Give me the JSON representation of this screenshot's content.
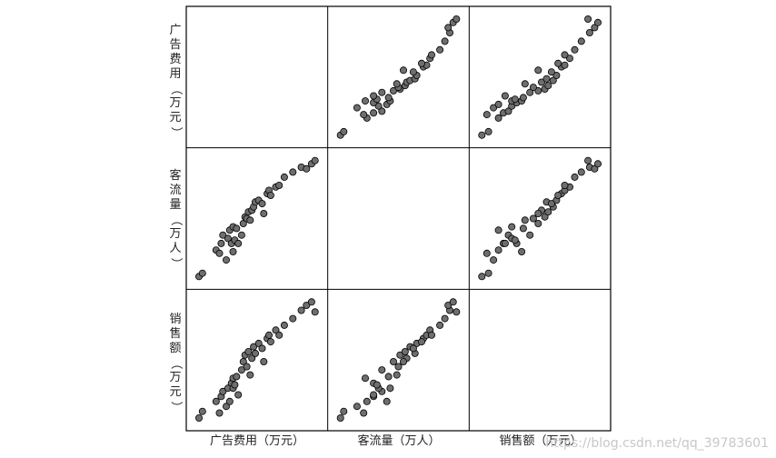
{
  "chart_data": {
    "type": "scatter",
    "variables": [
      "广告费用（万元）",
      "客流量（万人）",
      "销售额（万元）"
    ],
    "points": [
      {
        "ad": 1.0,
        "traffic": 1.0,
        "sales": 1.0
      },
      {
        "ad": 1.2,
        "traffic": 1.2,
        "sales": 1.4
      },
      {
        "ad": 2.0,
        "traffic": 2.6,
        "sales": 2.0
      },
      {
        "ad": 2.2,
        "traffic": 2.4,
        "sales": 1.3
      },
      {
        "ad": 2.3,
        "traffic": 3.0,
        "sales": 2.3
      },
      {
        "ad": 2.4,
        "traffic": 3.5,
        "sales": 2.6
      },
      {
        "ad": 2.6,
        "traffic": 2.0,
        "sales": 1.7
      },
      {
        "ad": 2.7,
        "traffic": 3.3,
        "sales": 2.8
      },
      {
        "ad": 2.8,
        "traffic": 3.8,
        "sales": 2.0
      },
      {
        "ad": 2.9,
        "traffic": 3.0,
        "sales": 3.1
      },
      {
        "ad": 3.0,
        "traffic": 4.0,
        "sales": 2.8
      },
      {
        "ad": 3.0,
        "traffic": 2.5,
        "sales": 3.4
      },
      {
        "ad": 3.1,
        "traffic": 3.2,
        "sales": 3.0
      },
      {
        "ad": 3.2,
        "traffic": 3.9,
        "sales": 3.5
      },
      {
        "ad": 3.3,
        "traffic": 3.0,
        "sales": 2.4
      },
      {
        "ad": 3.5,
        "traffic": 3.5,
        "sales": 3.9
      },
      {
        "ad": 3.6,
        "traffic": 4.2,
        "sales": 4.4
      },
      {
        "ad": 3.7,
        "traffic": 4.6,
        "sales": 4.8
      },
      {
        "ad": 3.8,
        "traffic": 4.5,
        "sales": 4.1
      },
      {
        "ad": 3.9,
        "traffic": 4.9,
        "sales": 5.0
      },
      {
        "ad": 4.0,
        "traffic": 4.4,
        "sales": 3.6
      },
      {
        "ad": 4.1,
        "traffic": 5.0,
        "sales": 4.6
      },
      {
        "ad": 4.2,
        "traffic": 5.2,
        "sales": 5.3
      },
      {
        "ad": 4.3,
        "traffic": 5.5,
        "sales": 4.9
      },
      {
        "ad": 4.5,
        "traffic": 5.6,
        "sales": 5.5
      },
      {
        "ad": 4.7,
        "traffic": 5.4,
        "sales": 5.2
      },
      {
        "ad": 4.8,
        "traffic": 4.8,
        "sales": 4.4
      },
      {
        "ad": 5.0,
        "traffic": 6.0,
        "sales": 5.8
      },
      {
        "ad": 5.1,
        "traffic": 6.2,
        "sales": 6.0
      },
      {
        "ad": 5.2,
        "traffic": 5.9,
        "sales": 5.6
      },
      {
        "ad": 5.5,
        "traffic": 6.4,
        "sales": 6.3
      },
      {
        "ad": 5.7,
        "traffic": 6.5,
        "sales": 6.0
      },
      {
        "ad": 6.0,
        "traffic": 7.0,
        "sales": 6.6
      },
      {
        "ad": 6.5,
        "traffic": 7.3,
        "sales": 7.0
      },
      {
        "ad": 7.0,
        "traffic": 7.6,
        "sales": 7.5
      },
      {
        "ad": 7.3,
        "traffic": 7.5,
        "sales": 7.8
      },
      {
        "ad": 7.6,
        "traffic": 7.8,
        "sales": 8.0
      },
      {
        "ad": 7.8,
        "traffic": 8.0,
        "sales": 7.4
      }
    ],
    "point_color": "#6e6e6e",
    "point_edge_color": "#000000",
    "grid": false,
    "legend": "none"
  },
  "labels": {
    "y_row1": [
      "广",
      "告",
      "费",
      "用",
      "（",
      "万",
      "元",
      "）"
    ],
    "y_row2": [
      "客",
      "流",
      "量",
      "（",
      "万",
      "人",
      "）"
    ],
    "y_row3": [
      "销",
      "售",
      "额",
      "（",
      "万",
      "元",
      "）"
    ],
    "x_col1": "广告费用（万元）",
    "x_col2": "客流量（万人）",
    "x_col3": "销售额（万元）"
  },
  "watermark": "https://blog.csdn.net/qq_39783601"
}
